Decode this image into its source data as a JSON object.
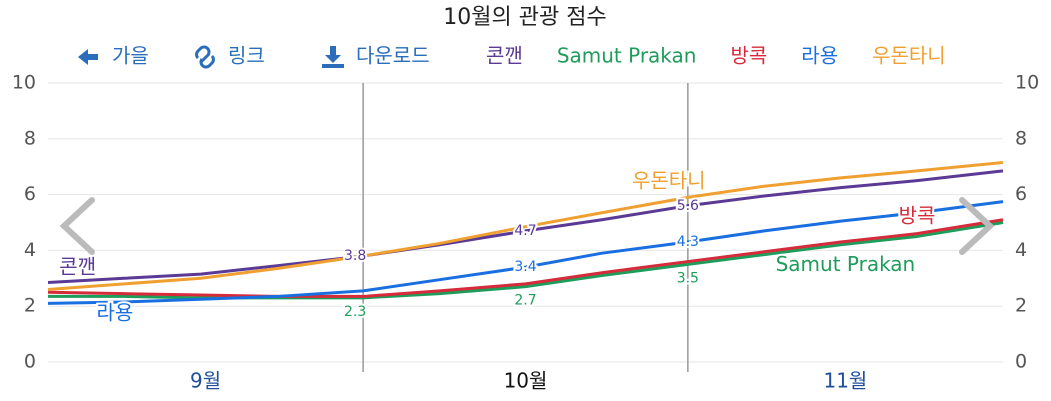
{
  "chart_data": {
    "type": "line",
    "title": "10월의 관광 점수",
    "toolbar": [
      "가을",
      "링크",
      "다운로드"
    ],
    "x": [
      0,
      8,
      16,
      24,
      33,
      41,
      50,
      58,
      67,
      75,
      83,
      91,
      100
    ],
    "xlim": [
      0,
      100
    ],
    "xticks": [
      {
        "value": 16.5,
        "label": "9월"
      },
      {
        "value": 50,
        "label": "10월"
      },
      {
        "value": 83.5,
        "label": "11월"
      }
    ],
    "x_dividers": [
      33,
      67
    ],
    "ylim": [
      0,
      10
    ],
    "yticks": [
      0,
      2,
      4,
      6,
      8,
      10
    ],
    "grid": true,
    "series": [
      {
        "name": "콘깬",
        "color": "#5b3a96",
        "values": [
          2.85,
          3.0,
          3.15,
          3.45,
          3.8,
          4.2,
          4.7,
          5.1,
          5.6,
          5.95,
          6.25,
          6.5,
          6.85
        ],
        "labeled_points": [
          4,
          6,
          8
        ]
      },
      {
        "name": "Samut Prakan",
        "color": "#1e9c5a",
        "values": [
          2.35,
          2.35,
          2.3,
          2.3,
          2.3,
          2.45,
          2.7,
          3.1,
          3.5,
          3.85,
          4.2,
          4.5,
          5.0
        ],
        "labeled_points": [
          4,
          6,
          8
        ]
      },
      {
        "name": "방콕",
        "color": "#d62b3a",
        "values": [
          2.5,
          2.45,
          2.4,
          2.35,
          2.35,
          2.55,
          2.8,
          3.2,
          3.6,
          3.95,
          4.3,
          4.6,
          5.1
        ],
        "labeled_points": []
      },
      {
        "name": "라용",
        "color": "#1a6fe0",
        "values": [
          2.1,
          2.15,
          2.25,
          2.35,
          2.55,
          2.95,
          3.4,
          3.9,
          4.3,
          4.7,
          5.05,
          5.35,
          5.75
        ],
        "labeled_points": [
          6,
          8
        ]
      },
      {
        "name": "우돈타니",
        "color": "#f0a030",
        "values": [
          2.6,
          2.8,
          3.0,
          3.35,
          3.8,
          4.25,
          4.85,
          5.35,
          5.9,
          6.3,
          6.6,
          6.85,
          7.15
        ],
        "labeled_points": []
      }
    ],
    "annotations": [
      {
        "series": 0,
        "x": 3.1,
        "y": 3.37
      },
      {
        "series": 3,
        "x": 7,
        "y": 1.72
      },
      {
        "series": 4,
        "x": 65,
        "y": 6.45
      },
      {
        "series": 2,
        "x": 91,
        "y": 5.2
      },
      {
        "series": 1,
        "x": 83.5,
        "y": 3.45
      }
    ]
  }
}
